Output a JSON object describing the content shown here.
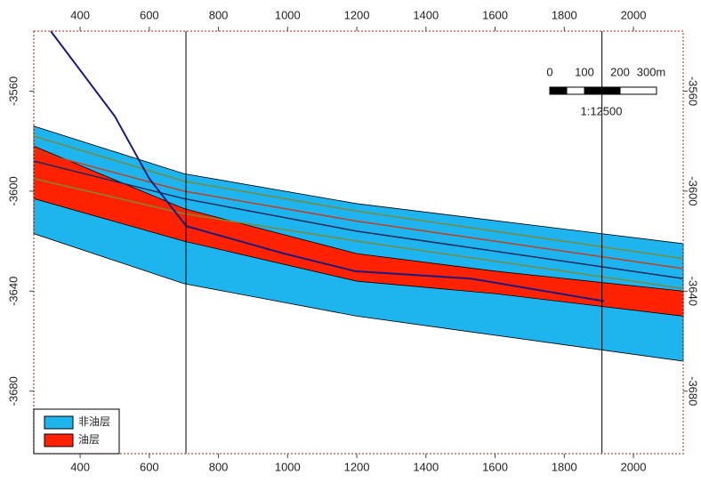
{
  "chart_data": {
    "type": "section",
    "xlim": [
      266,
      2144
    ],
    "ylim": [
      -3705,
      -3536
    ],
    "xticks": [
      400,
      600,
      800,
      1000,
      1200,
      1400,
      1600,
      1800,
      2000
    ],
    "yticks": [
      -3560,
      -3600,
      -3640,
      -3680
    ],
    "areas": [
      {
        "color": "#1eb4ee",
        "x": [
          266,
          700,
          1200,
          2144,
          2144,
          1200,
          700,
          266
        ],
        "y": [
          -3574,
          -3593,
          -3605,
          -3621,
          -3668,
          -3650,
          -3637,
          -3617
        ]
      },
      {
        "color": "#ff2200",
        "x": [
          266,
          700,
          1200,
          1600,
          2144,
          2144,
          1600,
          1200,
          700,
          266
        ],
        "y": [
          -3582,
          -3607,
          -3625,
          -3632,
          -3640,
          -3650,
          -3641,
          -3636,
          -3620,
          -3603
        ]
      }
    ],
    "lines": [
      {
        "color": "#7a8a3a",
        "x": [
          266,
          700,
          1200,
          2144
        ],
        "y": [
          -3578,
          -3596,
          -3608,
          -3627
        ]
      },
      {
        "color": "#c04020",
        "x": [
          266,
          700,
          1200,
          2144
        ],
        "y": [
          -3584,
          -3600,
          -3612,
          -3631
        ]
      },
      {
        "color": "#1a2a5a",
        "x": [
          266,
          700,
          1200,
          2144
        ],
        "y": [
          -3588,
          -3603,
          -3616,
          -3635
        ]
      },
      {
        "color": "#7a8a3a",
        "x": [
          266,
          700,
          1200,
          2144
        ],
        "y": [
          -3595,
          -3609,
          -3620,
          -3639
        ]
      },
      {
        "color": "#1a1a80",
        "x": [
          315,
          500,
          600,
          707,
          990,
          1195,
          1530,
          1915
        ],
        "y": [
          -3536,
          -3570,
          -3595,
          -3614,
          -3625,
          -3632,
          -3635,
          -3644
        ]
      }
    ],
    "wells": [
      706,
      1909
    ],
    "scale_bar": {
      "labels": [
        "0",
        "100",
        "200",
        "300m"
      ],
      "ratio": "1:12500"
    },
    "legend": [
      {
        "label": "非油层",
        "color": "#1eb4ee"
      },
      {
        "label": "油层",
        "color": "#ff2200"
      }
    ]
  }
}
